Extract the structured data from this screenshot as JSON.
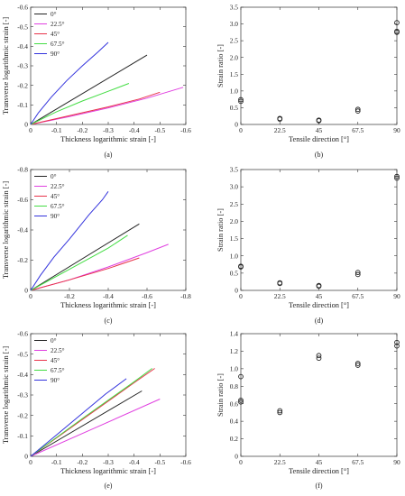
{
  "chart_data": [
    {
      "panel_label": "(a)",
      "type": "line",
      "xlabel": "Thickness logarithmic strain [-]",
      "ylabel": "Transverse logarithmic strain [-]",
      "xlim": [
        0,
        -0.6
      ],
      "ylim": [
        0,
        -0.6
      ],
      "xticks": [
        0,
        -0.1,
        -0.2,
        -0.3,
        -0.4,
        -0.5,
        -0.6
      ],
      "yticks": [
        0,
        -0.1,
        -0.2,
        -0.3,
        -0.4,
        -0.5,
        -0.6
      ],
      "xtick_labels": [
        "0",
        "-0.1",
        "-0.2",
        "-0.3",
        "-0.4",
        "-0.5",
        "-0.6"
      ],
      "ytick_labels": [
        "0",
        "-0.1",
        "-0.2",
        "-0.3",
        "-0.4",
        "-0.5",
        "-0.6"
      ],
      "legend_position": "top-left",
      "series": [
        {
          "name": "0°",
          "color": "#222222",
          "x": [
            0,
            -0.45
          ],
          "y": [
            0,
            -0.355
          ]
        },
        {
          "name": "22.5°",
          "color": "#e040e0",
          "x": [
            0,
            -0.15,
            -0.3,
            -0.45,
            -0.59
          ],
          "y": [
            0,
            -0.04,
            -0.085,
            -0.135,
            -0.19
          ]
        },
        {
          "name": "45°",
          "color": "#e8334a",
          "x": [
            0,
            -0.15,
            -0.3,
            -0.42,
            -0.5
          ],
          "y": [
            0,
            -0.045,
            -0.09,
            -0.13,
            -0.165
          ]
        },
        {
          "name": "67.5°",
          "color": "#44dd44",
          "x": [
            0,
            -0.1,
            -0.2,
            -0.3,
            -0.38
          ],
          "y": [
            0,
            -0.065,
            -0.12,
            -0.17,
            -0.21
          ]
        },
        {
          "name": "90°",
          "color": "#3333dd",
          "x": [
            0,
            -0.03,
            -0.08,
            -0.14,
            -0.2,
            -0.26,
            -0.3
          ],
          "y": [
            0,
            -0.06,
            -0.14,
            -0.225,
            -0.3,
            -0.37,
            -0.42
          ]
        }
      ]
    },
    {
      "panel_label": "(b)",
      "type": "scatter",
      "xlabel": "Tensile direction [°]",
      "ylabel": "Strain ratio [-]",
      "xlim": [
        0,
        90
      ],
      "ylim": [
        0,
        3.5
      ],
      "xticks": [
        0,
        22.5,
        45,
        67.5,
        90
      ],
      "yticks": [
        0,
        0.5,
        1,
        1.5,
        2,
        2.5,
        3,
        3.5
      ],
      "xtick_labels": [
        "0",
        "22.5",
        "45",
        "67.5",
        "90"
      ],
      "ytick_labels": [
        "0",
        "0.5",
        "1.0",
        "1.5",
        "2.0",
        "2.5",
        "3.0",
        "3.5"
      ],
      "points": [
        {
          "x": 0,
          "y": 0.69
        },
        {
          "x": 0,
          "y": 0.74
        },
        {
          "x": 22.5,
          "y": 0.16
        },
        {
          "x": 22.5,
          "y": 0.18
        },
        {
          "x": 45,
          "y": 0.11
        },
        {
          "x": 45,
          "y": 0.13
        },
        {
          "x": 67.5,
          "y": 0.4
        },
        {
          "x": 67.5,
          "y": 0.45
        },
        {
          "x": 90,
          "y": 2.75
        },
        {
          "x": 90,
          "y": 2.78
        },
        {
          "x": 90,
          "y": 3.04
        }
      ]
    },
    {
      "panel_label": "(c)",
      "type": "line",
      "xlabel": "Thickness logarithmic strain [-]",
      "ylabel": "Transverse logarithmic strain [-]",
      "xlim": [
        0,
        -0.8
      ],
      "ylim": [
        0,
        -0.8
      ],
      "xticks": [
        0,
        -0.2,
        -0.4,
        -0.6,
        -0.8
      ],
      "yticks": [
        0,
        -0.2,
        -0.4,
        -0.6,
        -0.8
      ],
      "xtick_labels": [
        "0",
        "-0.2",
        "-0.4",
        "-0.6",
        "-0.8"
      ],
      "ytick_labels": [
        "0",
        "-0.2",
        "-0.4",
        "-0.6",
        "-0.8"
      ],
      "legend_position": "top-left",
      "series": [
        {
          "name": "0°",
          "color": "#222222",
          "x": [
            0,
            -0.56
          ],
          "y": [
            0,
            -0.44
          ]
        },
        {
          "name": "22.5°",
          "color": "#e040e0",
          "x": [
            0,
            -0.2,
            -0.4,
            -0.6,
            -0.71
          ],
          "y": [
            0,
            -0.07,
            -0.155,
            -0.25,
            -0.305
          ]
        },
        {
          "name": "45°",
          "color": "#e8334a",
          "x": [
            0,
            -0.2,
            -0.4,
            -0.56
          ],
          "y": [
            0,
            -0.07,
            -0.145,
            -0.215
          ]
        },
        {
          "name": "67.5°",
          "color": "#44dd44",
          "x": [
            0,
            -0.2,
            -0.4,
            -0.5
          ],
          "y": [
            0,
            -0.14,
            -0.28,
            -0.365
          ]
        },
        {
          "name": "90°",
          "color": "#3333dd",
          "x": [
            0,
            -0.05,
            -0.12,
            -0.2,
            -0.3,
            -0.37,
            -0.4
          ],
          "y": [
            0,
            -0.1,
            -0.22,
            -0.34,
            -0.5,
            -0.6,
            -0.655
          ]
        }
      ]
    },
    {
      "panel_label": "(d)",
      "type": "scatter",
      "xlabel": "Tensile direction [°]",
      "ylabel": "Strain ratio [-]",
      "xlim": [
        0,
        90
      ],
      "ylim": [
        0,
        3.5
      ],
      "xticks": [
        0,
        22.5,
        45,
        67.5,
        90
      ],
      "yticks": [
        0,
        0.5,
        1,
        1.5,
        2,
        2.5,
        3,
        3.5
      ],
      "xtick_labels": [
        "0",
        "22.5",
        "45",
        "67.5",
        "90"
      ],
      "ytick_labels": [
        "0",
        "0.5",
        "1.0",
        "1.5",
        "2.0",
        "2.5",
        "3.0",
        "3.5"
      ],
      "points": [
        {
          "x": 0,
          "y": 0.68
        },
        {
          "x": 0,
          "y": 0.7
        },
        {
          "x": 22.5,
          "y": 0.2
        },
        {
          "x": 22.5,
          "y": 0.22
        },
        {
          "x": 45,
          "y": 0.12
        },
        {
          "x": 45,
          "y": 0.14
        },
        {
          "x": 67.5,
          "y": 0.46
        },
        {
          "x": 67.5,
          "y": 0.52
        },
        {
          "x": 90,
          "y": 3.25
        },
        {
          "x": 90,
          "y": 3.3
        }
      ]
    },
    {
      "panel_label": "(e)",
      "type": "line",
      "xlabel": "Thickness logarithmic strain [-]",
      "ylabel": "Transverse logarithmic strain [-]",
      "xlim": [
        0,
        -0.6
      ],
      "ylim": [
        0,
        -0.6
      ],
      "xticks": [
        0,
        -0.1,
        -0.2,
        -0.3,
        -0.4,
        -0.5,
        -0.6
      ],
      "yticks": [
        0,
        -0.1,
        -0.2,
        -0.3,
        -0.4,
        -0.5,
        -0.6
      ],
      "xtick_labels": [
        "0",
        "-0.1",
        "-0.2",
        "-0.3",
        "-0.4",
        "-0.5",
        "-0.6"
      ],
      "ytick_labels": [
        "0",
        "-0.1",
        "-0.2",
        "-0.3",
        "-0.4",
        "-0.5",
        "-0.6"
      ],
      "legend_position": "top-left",
      "series": [
        {
          "name": "0°",
          "color": "#222222",
          "x": [
            0,
            -0.43
          ],
          "y": [
            0,
            -0.32
          ]
        },
        {
          "name": "22.5°",
          "color": "#e040e0",
          "x": [
            0,
            -0.25,
            -0.5
          ],
          "y": [
            0,
            -0.14,
            -0.28
          ]
        },
        {
          "name": "45°",
          "color": "#e8334a",
          "x": [
            0,
            -0.2,
            -0.4,
            -0.48
          ],
          "y": [
            0,
            -0.18,
            -0.36,
            -0.43
          ]
        },
        {
          "name": "67.5°",
          "color": "#44dd44",
          "x": [
            0,
            -0.2,
            -0.4,
            -0.47
          ],
          "y": [
            0,
            -0.185,
            -0.365,
            -0.43
          ]
        },
        {
          "name": "90°",
          "color": "#3333dd",
          "x": [
            0,
            -0.1,
            -0.2,
            -0.29,
            -0.37
          ],
          "y": [
            0,
            -0.105,
            -0.21,
            -0.305,
            -0.38
          ]
        }
      ]
    },
    {
      "panel_label": "(f)",
      "type": "scatter",
      "xlabel": "Tensile direction [°]",
      "ylabel": "Strain ratio [-]",
      "xlim": [
        0,
        90
      ],
      "ylim": [
        0,
        1.4
      ],
      "xticks": [
        0,
        22.5,
        45,
        67.5,
        90
      ],
      "yticks": [
        0,
        0.2,
        0.4,
        0.6,
        0.8,
        1,
        1.2,
        1.4
      ],
      "xtick_labels": [
        "0",
        "22.5",
        "45",
        "67.5",
        "90"
      ],
      "ytick_labels": [
        "0",
        "0.2",
        "0.4",
        "0.6",
        "0.8",
        "1.0",
        "1.2",
        "1.4"
      ],
      "points": [
        {
          "x": 0,
          "y": 0.62
        },
        {
          "x": 0,
          "y": 0.64
        },
        {
          "x": 0,
          "y": 0.91
        },
        {
          "x": 22.5,
          "y": 0.5
        },
        {
          "x": 22.5,
          "y": 0.52
        },
        {
          "x": 45,
          "y": 1.12
        },
        {
          "x": 45,
          "y": 1.15
        },
        {
          "x": 67.5,
          "y": 1.04
        },
        {
          "x": 67.5,
          "y": 1.06
        },
        {
          "x": 90,
          "y": 1.26
        },
        {
          "x": 90,
          "y": 1.3
        }
      ]
    }
  ]
}
